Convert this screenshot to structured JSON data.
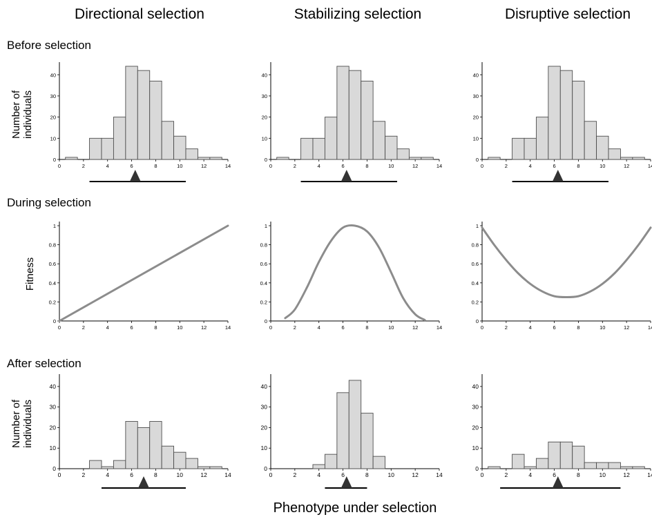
{
  "columns": [
    "Directional selection",
    "Stabilizing selection",
    "Disruptive selection"
  ],
  "row_labels": [
    "Before selection",
    "During selection",
    "After selection"
  ],
  "y_labels": {
    "count_line1": "Number of",
    "count_line2": "individuals",
    "fitness": "Fitness"
  },
  "x_label": "Phenotype under selection",
  "colors": {
    "bar_fill": "#d9d9d9",
    "bar_stroke": "#4d4d4d",
    "curve": "#8c8c8c",
    "axis": "#000000",
    "marker": "#333333"
  },
  "chart_data": [
    {
      "id": "before-directional",
      "type": "bar",
      "bin_edges_start": 0.5,
      "bin_width": 1,
      "values": [
        1,
        0,
        10,
        10,
        20,
        44,
        42,
        37,
        18,
        11,
        5,
        1,
        1
      ],
      "xlim": [
        0,
        14
      ],
      "ylim": [
        0,
        44
      ],
      "xticks": [
        0,
        2,
        4,
        6,
        8,
        10,
        12,
        14
      ],
      "yticks": [
        0,
        10,
        20,
        30,
        40
      ],
      "range_bar": [
        2.5,
        10.5
      ],
      "mean_marker": 6.3
    },
    {
      "id": "before-stabilizing",
      "type": "bar",
      "bin_edges_start": 0.5,
      "bin_width": 1,
      "values": [
        1,
        0,
        10,
        10,
        20,
        44,
        42,
        37,
        18,
        11,
        5,
        1,
        1
      ],
      "xlim": [
        0,
        14
      ],
      "ylim": [
        0,
        44
      ],
      "xticks": [
        0,
        2,
        4,
        6,
        8,
        10,
        12,
        14
      ],
      "yticks": [
        0,
        10,
        20,
        30,
        40
      ],
      "range_bar": [
        2.5,
        10.5
      ],
      "mean_marker": 6.3
    },
    {
      "id": "before-disruptive",
      "type": "bar",
      "bin_edges_start": 0.5,
      "bin_width": 1,
      "values": [
        1,
        0,
        10,
        10,
        20,
        44,
        42,
        37,
        18,
        11,
        5,
        1,
        1
      ],
      "xlim": [
        0,
        14
      ],
      "ylim": [
        0,
        44
      ],
      "xticks": [
        0,
        2,
        4,
        6,
        8,
        10,
        12,
        14
      ],
      "yticks": [
        0,
        10,
        20,
        30,
        40
      ],
      "range_bar": [
        2.5,
        10.5
      ],
      "mean_marker": 6.3
    },
    {
      "id": "fitness-directional",
      "type": "line",
      "x": [
        0,
        14
      ],
      "y": [
        0,
        1
      ],
      "xlim": [
        0,
        14
      ],
      "ylim": [
        0,
        1
      ],
      "xticks": [
        0,
        2,
        4,
        6,
        8,
        10,
        12,
        14
      ],
      "yticks": [
        0,
        0.2,
        0.4,
        0.6,
        0.8,
        1
      ]
    },
    {
      "id": "fitness-stabilizing",
      "type": "line",
      "x": [
        1.2,
        2,
        3,
        4,
        5,
        6,
        7,
        8,
        9,
        10,
        11,
        12,
        12.8
      ],
      "y": [
        0.03,
        0.12,
        0.35,
        0.62,
        0.84,
        0.98,
        1.0,
        0.94,
        0.77,
        0.51,
        0.24,
        0.07,
        0.01
      ],
      "xlim": [
        0,
        14
      ],
      "ylim": [
        0,
        1
      ],
      "xticks": [
        0,
        2,
        4,
        6,
        8,
        10,
        12,
        14
      ],
      "yticks": [
        0,
        0.2,
        0.4,
        0.6,
        0.8,
        1
      ]
    },
    {
      "id": "fitness-disruptive",
      "type": "line",
      "x": [
        0,
        1,
        2,
        3,
        4,
        5,
        6,
        7,
        8,
        9,
        10,
        11,
        12,
        13,
        14
      ],
      "y": [
        0.98,
        0.8,
        0.64,
        0.5,
        0.39,
        0.31,
        0.26,
        0.25,
        0.26,
        0.31,
        0.39,
        0.5,
        0.64,
        0.8,
        0.98
      ],
      "xlim": [
        0,
        14
      ],
      "ylim": [
        0,
        1
      ],
      "xticks": [
        0,
        2,
        4,
        6,
        8,
        10,
        12,
        14
      ],
      "yticks": [
        0,
        0.2,
        0.4,
        0.6,
        0.8,
        1
      ]
    },
    {
      "id": "after-directional",
      "type": "bar",
      "bin_edges_start": 2.5,
      "bin_width": 1,
      "values": [
        4,
        1,
        4,
        23,
        20,
        23,
        11,
        8,
        5,
        1,
        1
      ],
      "xlim": [
        0,
        14
      ],
      "ylim": [
        0,
        44
      ],
      "xticks": [
        0,
        2,
        4,
        6,
        8,
        10,
        12,
        14
      ],
      "yticks": [
        0,
        10,
        20,
        30,
        40
      ],
      "range_bar": [
        3.5,
        10.5
      ],
      "mean_marker": 7.0
    },
    {
      "id": "after-stabilizing",
      "type": "bar",
      "bin_edges_start": 3.5,
      "bin_width": 1,
      "values": [
        2,
        7,
        37,
        43,
        27,
        6
      ],
      "xlim": [
        0,
        14
      ],
      "ylim": [
        0,
        44
      ],
      "xticks": [
        0,
        2,
        4,
        6,
        8,
        10,
        12,
        14
      ],
      "yticks": [
        0,
        10,
        20,
        30,
        40
      ],
      "range_bar": [
        4.5,
        8.0
      ],
      "mean_marker": 6.3
    },
    {
      "id": "after-disruptive",
      "type": "bar",
      "bin_edges_start": 0.5,
      "bin_width": 1,
      "values": [
        1,
        0,
        7,
        1,
        5,
        13,
        13,
        11,
        3,
        3,
        3,
        1,
        1
      ],
      "xlim": [
        0,
        14
      ],
      "ylim": [
        0,
        44
      ],
      "xticks": [
        0,
        2,
        4,
        6,
        8,
        10,
        12,
        14
      ],
      "yticks": [
        0,
        10,
        20,
        30,
        40
      ],
      "range_bar": [
        1.5,
        11.5
      ],
      "mean_marker": 6.3
    }
  ]
}
